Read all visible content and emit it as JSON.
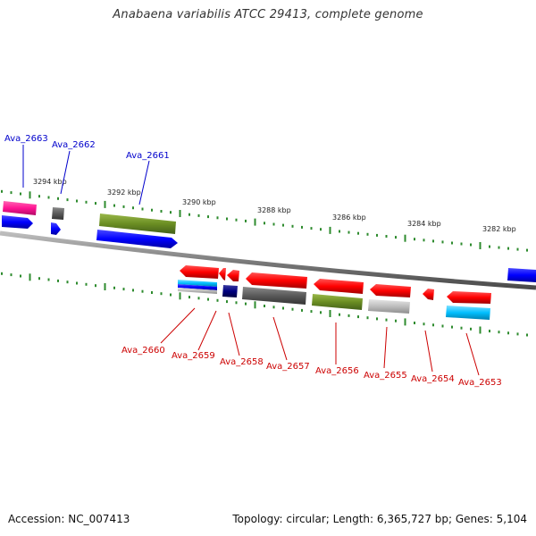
{
  "title": "Anabaena variabilis ATCC 29413, complete genome",
  "footer": {
    "accession": "Accession: NC_007413",
    "summary": "Topology: circular; Length: 6,365,727 bp; Genes: 5,104"
  },
  "colors": {
    "forward_label": "#0000cc",
    "reverse_label": "#cc0000",
    "tick": "#2e8b2e",
    "backbone": "#808080"
  },
  "scale_labels": [
    "3294 kbp",
    "3292 kbp",
    "3290 kbp",
    "3288 kbp",
    "3286 kbp",
    "3284 kbp",
    "3282 kbp"
  ],
  "forward_genes": [
    "Ava_2663",
    "Ava_2662",
    "Ava_2661"
  ],
  "reverse_genes": [
    "Ava_2660",
    "Ava_2659",
    "Ava_2658",
    "Ava_2657",
    "Ava_2656",
    "Ava_2655",
    "Ava_2654",
    "Ava_2653"
  ]
}
